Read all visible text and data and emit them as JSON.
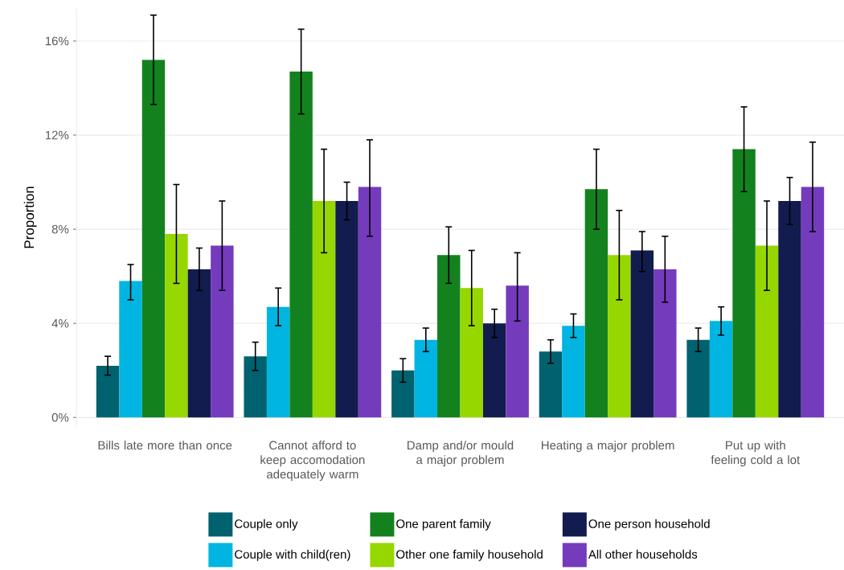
{
  "chart_data": {
    "type": "bar",
    "ylabel": "Proportion",
    "categories": [
      "Bills late more than once",
      "Cannot afford to keep accomodation adequately warm",
      "Damp and/or mould a major problem",
      "Heating a major problem",
      "Put up with feeling cold a lot"
    ],
    "series": [
      {
        "name": "Couple only",
        "color": "#00626f",
        "values": [
          2.2,
          2.6,
          2.0,
          2.8,
          3.3
        ],
        "errors": [
          [
            1.8,
            2.6
          ],
          [
            2.0,
            3.2
          ],
          [
            1.5,
            2.5
          ],
          [
            2.3,
            3.3
          ],
          [
            2.8,
            3.8
          ]
        ]
      },
      {
        "name": "Couple with child(ren)",
        "color": "#00b5e1",
        "values": [
          5.8,
          4.7,
          3.3,
          3.9,
          4.1
        ],
        "errors": [
          [
            5.0,
            6.5
          ],
          [
            3.9,
            5.5
          ],
          [
            2.8,
            3.8
          ],
          [
            3.4,
            4.4
          ],
          [
            3.5,
            4.7
          ]
        ]
      },
      {
        "name": "One parent family",
        "color": "#13821e",
        "values": [
          15.2,
          14.7,
          6.9,
          9.7,
          11.4
        ],
        "errors": [
          [
            13.3,
            17.1
          ],
          [
            12.9,
            16.5
          ],
          [
            5.7,
            8.1
          ],
          [
            8.0,
            11.4
          ],
          [
            9.6,
            13.2
          ]
        ]
      },
      {
        "name": "Other one family household",
        "color": "#97d700",
        "values": [
          7.8,
          9.2,
          5.5,
          6.9,
          7.3
        ],
        "errors": [
          [
            5.7,
            9.9
          ],
          [
            7.0,
            11.4
          ],
          [
            3.9,
            7.1
          ],
          [
            5.0,
            8.8
          ],
          [
            5.4,
            9.2
          ]
        ]
      },
      {
        "name": "One person household",
        "color": "#121c4e",
        "values": [
          6.3,
          9.2,
          4.0,
          7.1,
          9.2
        ],
        "errors": [
          [
            5.4,
            7.2
          ],
          [
            8.4,
            10.0
          ],
          [
            3.4,
            4.6
          ],
          [
            6.2,
            7.9
          ],
          [
            8.2,
            10.2
          ]
        ]
      },
      {
        "name": "All other households",
        "color": "#753bbd",
        "values": [
          7.3,
          9.8,
          5.6,
          6.3,
          9.8
        ],
        "errors": [
          [
            5.4,
            9.2
          ],
          [
            7.7,
            11.8
          ],
          [
            4.1,
            7.0
          ],
          [
            4.9,
            7.7
          ],
          [
            7.9,
            11.7
          ]
        ]
      }
    ],
    "ylim": [
      -0.4,
      17.4
    ],
    "yticks": [
      {
        "value": 0,
        "label": "0%"
      },
      {
        "value": 4,
        "label": "4%"
      },
      {
        "value": 8,
        "label": "8%"
      },
      {
        "value": 12,
        "label": "12%"
      },
      {
        "value": 16,
        "label": "16%"
      }
    ],
    "grid": "y",
    "legend": "bottom"
  }
}
